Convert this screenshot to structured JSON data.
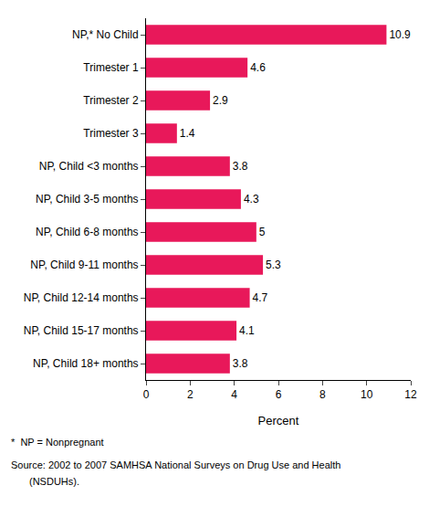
{
  "chart_data": {
    "type": "bar",
    "orientation": "horizontal",
    "categories": [
      "NP,* No Child",
      "Trimester 1",
      "Trimester 2",
      "Trimester 3",
      "NP, Child <3 months",
      "NP, Child 3-5 months",
      "NP, Child 6-8 months",
      "NP, Child 9-11 months",
      "NP, Child 12-14 months",
      "NP, Child 15-17 months",
      "NP, Child 18+ months"
    ],
    "values": [
      10.9,
      4.6,
      2.9,
      1.4,
      3.8,
      4.3,
      5.0,
      5.3,
      4.7,
      4.1,
      3.8
    ],
    "color": "#E8185A",
    "xlabel": "Percent",
    "xlim": [
      0,
      12
    ],
    "xticks": [
      0,
      2,
      4,
      6,
      8,
      10,
      12
    ],
    "grid": false,
    "data_labels": true,
    "annotations": [
      "*  NP = Nonpregnant",
      "Source: 2002 to 2007 SAMHSA National Surveys on Drug Use and Health",
      "(NSDUHs)."
    ]
  }
}
